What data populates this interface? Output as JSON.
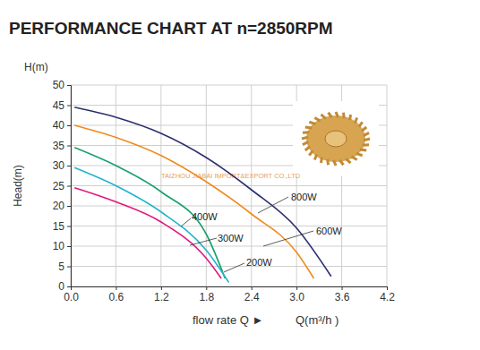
{
  "chart_data": {
    "type": "line",
    "title": "PERFORMANCE CHART AT n=2850RPM",
    "ylabel_top": "H(m)",
    "ylabel": "Head(m)",
    "xlabel": "flow rate Q ►",
    "xlabel_unit": "Q(m³/h )",
    "annotations": [
      "TAIZHOU JIABAI IMPORT&EXPORT CO.,LTD"
    ],
    "xlim": [
      0,
      4.2
    ],
    "xticks": [
      {
        "value": 0,
        "label": "0.0"
      },
      0.6,
      1.2,
      1.8,
      2.4,
      {
        "value": 3,
        "label": "3.0"
      },
      3.6,
      4.2
    ],
    "ylim": [
      0,
      50
    ],
    "yticks": [
      0,
      5,
      10,
      15,
      20,
      25,
      30,
      35,
      40,
      45,
      50
    ],
    "grid": true,
    "series": [
      {
        "name": "800W",
        "color": "#2c2f6e",
        "x": [
          0.05,
          0.6,
          1.2,
          1.8,
          2.4,
          3.0,
          3.46
        ],
        "values": [
          44.5,
          42,
          38,
          32,
          24,
          14.5,
          2.5
        ]
      },
      {
        "name": "600W",
        "color": "#f08a1c",
        "x": [
          0.05,
          0.6,
          1.2,
          1.8,
          2.4,
          3.0,
          3.23
        ],
        "values": [
          40,
          37,
          32.5,
          26,
          18,
          8.5,
          2
        ]
      },
      {
        "name": "400W",
        "color": "#17a06b",
        "x": [
          0.05,
          0.6,
          1.2,
          1.8,
          2.05
        ],
        "values": [
          34.5,
          30,
          23.5,
          13,
          2
        ]
      },
      {
        "name": "300W",
        "color": "#1fb5c9",
        "x": [
          0.05,
          0.6,
          1.2,
          1.8,
          2.1
        ],
        "values": [
          29.5,
          25,
          18.5,
          9,
          1
        ]
      },
      {
        "name": "200W",
        "color": "#e0197d",
        "x": [
          0.05,
          0.6,
          1.2,
          1.8,
          2.0
        ],
        "values": [
          24.5,
          21,
          16,
          7,
          2
        ]
      }
    ]
  }
}
